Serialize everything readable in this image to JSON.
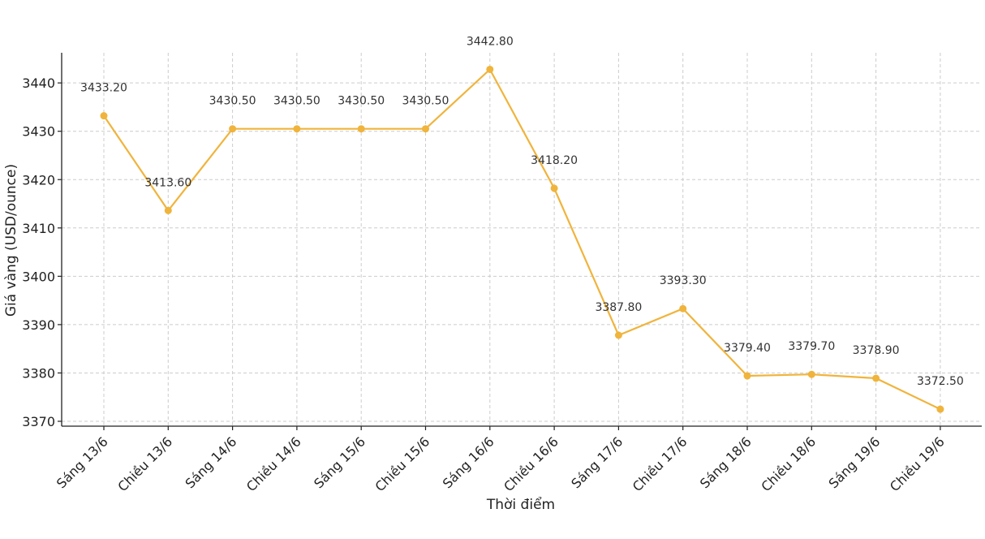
{
  "chart_data": {
    "type": "line",
    "title": "",
    "xlabel": "Thời điểm",
    "ylabel": "Giá vàng (USD/ounce)",
    "categories": [
      "Sáng 13/6",
      "Chiều 13/6",
      "Sáng 14/6",
      "Chiều 14/6",
      "Sáng 15/6",
      "Chiều 15/6",
      "Sáng 16/6",
      "Chiều 16/6",
      "Sáng 17/6",
      "Chiều 17/6",
      "Sáng 18/6",
      "Chiều 18/6",
      "Sáng 19/6",
      "Chiều 19/6"
    ],
    "values": [
      3433.2,
      3413.6,
      3430.5,
      3430.5,
      3430.5,
      3430.5,
      3442.8,
      3418.2,
      3387.8,
      3393.3,
      3379.4,
      3379.7,
      3378.9,
      3372.5
    ],
    "value_labels": [
      "3433.20",
      "3413.60",
      "3430.50",
      "3430.50",
      "3430.50",
      "3430.50",
      "3442.80",
      "3418.20",
      "3387.80",
      "3393.30",
      "3379.40",
      "3379.70",
      "3378.90",
      "3372.50"
    ],
    "yticks": [
      "3370",
      "3380",
      "3390",
      "3400",
      "3410",
      "3420",
      "3430",
      "3440"
    ],
    "ylim": [
      3369,
      3446
    ],
    "grid": true,
    "legend": "none",
    "line_color": "#f0b43c"
  }
}
